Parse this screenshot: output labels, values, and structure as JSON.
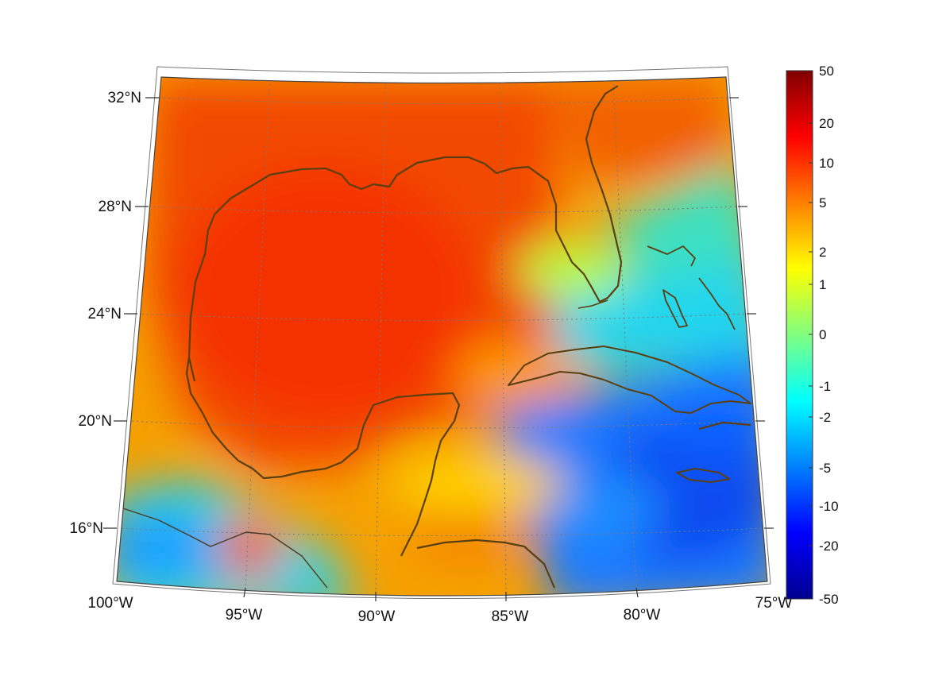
{
  "map": {
    "projection": "conic",
    "extent": {
      "lon_min": -100,
      "lon_max": -75,
      "lat_min": 14,
      "lat_max": 33
    },
    "grid": "dotted",
    "coastline_color": "#5b3f10",
    "lat_labels": [
      {
        "lat": 32,
        "label": "32°N"
      },
      {
        "lat": 28,
        "label": "28°N"
      },
      {
        "lat": 24,
        "label": "24°N"
      },
      {
        "lat": 20,
        "label": "20°N"
      },
      {
        "lat": 16,
        "label": "16°N"
      }
    ],
    "lon_labels": [
      {
        "lon": -100,
        "label": "100°W"
      },
      {
        "lon": -95,
        "label": "95°W"
      },
      {
        "lon": -90,
        "label": "90°W"
      },
      {
        "lon": -85,
        "label": "85°W"
      },
      {
        "lon": -80,
        "label": "80°W"
      },
      {
        "lon": -75,
        "label": "75°W"
      }
    ]
  },
  "colorbar": {
    "colormap": "jet",
    "ticks": [
      "50",
      "20",
      "10",
      "5",
      "2",
      "1",
      "0",
      "-1",
      "-2",
      "-5",
      "-10",
      "-20",
      "-50"
    ],
    "colors": [
      "#00008f",
      "#0000ff",
      "#0080ff",
      "#00ffff",
      "#80ff80",
      "#ffff00",
      "#ff8000",
      "#ff0000",
      "#800000"
    ]
  }
}
